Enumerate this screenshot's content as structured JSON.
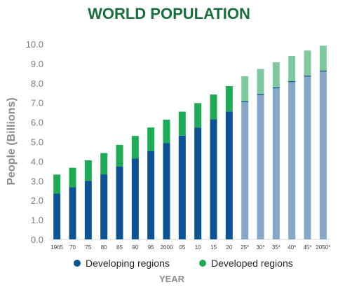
{
  "chart_data": {
    "type": "bar",
    "stacked": true,
    "title": "WORLD POPULATION",
    "xlabel": "YEAR",
    "ylabel": "People (Billions)",
    "ylim": [
      0,
      10
    ],
    "yticks": [
      "0.0",
      "1.0",
      "2.0",
      "3.0",
      "4.0",
      "5.0",
      "6.0",
      "7.0",
      "8.0",
      "9.0",
      "10.0"
    ],
    "grid": false,
    "legend_position": "bottom",
    "categories": [
      "1965",
      "70",
      "75",
      "80",
      "85",
      "90",
      "95",
      "2000",
      "05",
      "10",
      "15",
      "20",
      "25*",
      "30*",
      "35*",
      "40*",
      "45*",
      "2050*"
    ],
    "projected": [
      false,
      false,
      false,
      false,
      false,
      false,
      false,
      false,
      false,
      false,
      false,
      false,
      true,
      true,
      true,
      true,
      true,
      true
    ],
    "series": [
      {
        "name": "Developing regions",
        "color": "#0b5394",
        "projected_color": "#85a8c9",
        "values": [
          2.35,
          2.67,
          3.0,
          3.33,
          3.73,
          4.15,
          4.53,
          4.93,
          5.31,
          5.73,
          6.15,
          6.55,
          7.05,
          7.42,
          7.76,
          8.08,
          8.36,
          8.62
        ]
      },
      {
        "name": "Developed regions",
        "color": "#1fab55",
        "projected_color": "#80c9a0",
        "values": [
          0.97,
          1.0,
          1.05,
          1.09,
          1.11,
          1.15,
          1.2,
          1.2,
          1.23,
          1.25,
          1.27,
          1.3,
          1.3,
          1.31,
          1.31,
          1.31,
          1.31,
          1.3
        ]
      }
    ],
    "colors": {
      "title": "#1a6e3c",
      "ylabel": "#8c8c8c",
      "xlabel": "#8c8c8c",
      "tick": "#7f7f7f",
      "axis": "#d9d9d9",
      "legend_text": "#262626"
    }
  }
}
